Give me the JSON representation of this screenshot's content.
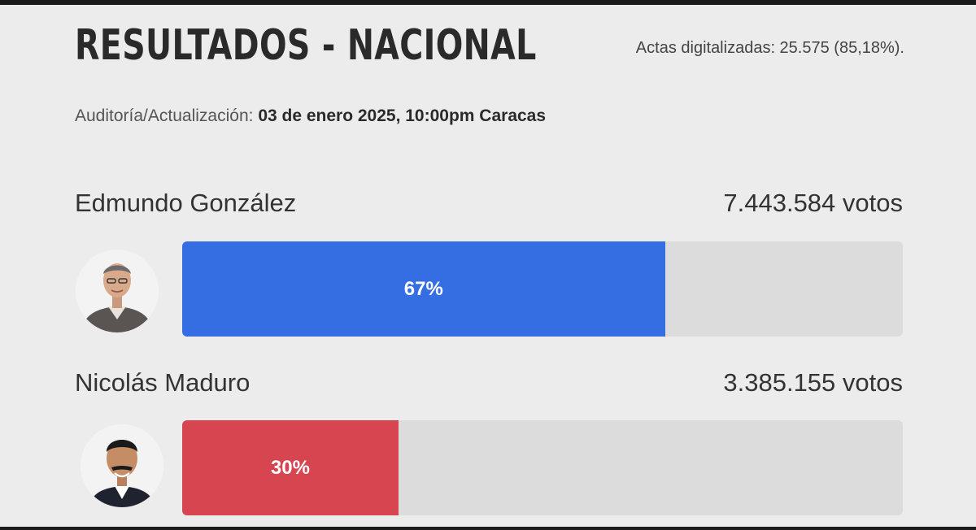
{
  "header": {
    "title": "RESULTADOS - NACIONAL",
    "actas": "Actas digitalizadas: 25.575 (85,18%).",
    "audit_label": "Auditoría/Actualización:",
    "audit_value": "03 de enero 2025, 10:00pm Caracas"
  },
  "candidates": [
    {
      "name": "Edmundo González",
      "votes": "7.443.584 votos",
      "percent_label": "67%",
      "percent": 67,
      "color": "#356de3"
    },
    {
      "name": "Nicolás Maduro",
      "votes": "3.385.155 votos",
      "percent_label": "30%",
      "percent": 30,
      "color": "#d74551"
    }
  ],
  "colors": {
    "background": "#ececec",
    "track": "#dcdcdc",
    "border": "#1b1b1b"
  }
}
